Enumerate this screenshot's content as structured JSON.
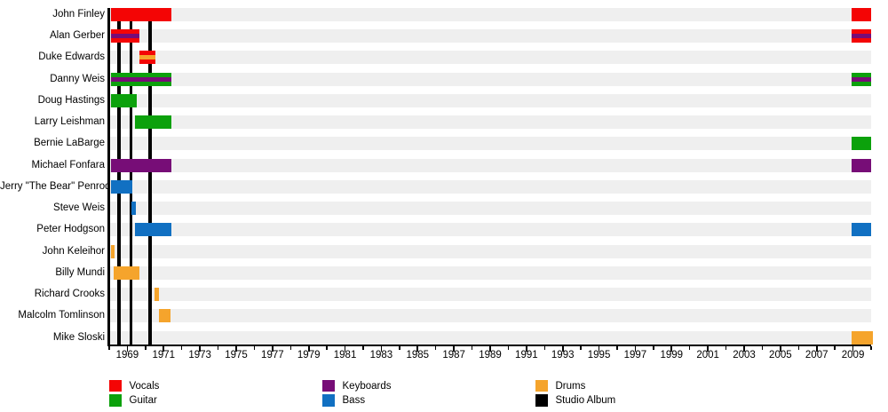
{
  "chart_data": {
    "type": "timeline",
    "description": "Band members timeline chart with studio album release markers",
    "colors": {
      "vocals": "#f40505",
      "guitar": "#0ca10c",
      "keyboards": "#770d77",
      "bass": "#1170c2",
      "drums": "#f5a42c",
      "album": "#000000",
      "row_bg": "#efefef"
    },
    "x_axis": {
      "start": 1968,
      "end": 2010,
      "tick_labels": [
        "1969",
        "1971",
        "1973",
        "1975",
        "1977",
        "1979",
        "1981",
        "1983",
        "1985",
        "1987",
        "1989",
        "1991",
        "1993",
        "1995",
        "1997",
        "1999",
        "2001",
        "2003",
        "2005",
        "2007",
        "2009"
      ]
    },
    "members": [
      {
        "name": "John Finley",
        "segments": [
          {
            "start": 1968.1,
            "end": 1971.45,
            "role": "vocals"
          },
          {
            "start": 2008.9,
            "end": 2010.0,
            "role": "vocals"
          }
        ]
      },
      {
        "name": "Alan Gerber",
        "segments": [
          {
            "start": 1968.1,
            "end": 1969.65,
            "role": "vocals",
            "stripe": "keyboards"
          },
          {
            "start": 2008.9,
            "end": 2010.0,
            "role": "vocals",
            "stripe": "keyboards"
          }
        ]
      },
      {
        "name": "Duke Edwards",
        "segments": [
          {
            "start": 1969.65,
            "end": 1970.55,
            "role": "vocals",
            "stripe": "drums"
          }
        ]
      },
      {
        "name": "Danny Weis",
        "segments": [
          {
            "start": 1968.1,
            "end": 1971.45,
            "role": "guitar",
            "stripe": "keyboards"
          },
          {
            "start": 2008.9,
            "end": 2010.0,
            "role": "guitar",
            "stripe": "keyboards"
          }
        ]
      },
      {
        "name": "Doug Hastings",
        "segments": [
          {
            "start": 1968.1,
            "end": 1969.5,
            "role": "guitar"
          }
        ]
      },
      {
        "name": "Larry Leishman",
        "segments": [
          {
            "start": 1969.4,
            "end": 1971.45,
            "role": "guitar"
          }
        ]
      },
      {
        "name": "Bernie LaBarge",
        "segments": [
          {
            "start": 2008.9,
            "end": 2010.0,
            "role": "guitar"
          }
        ]
      },
      {
        "name": "Michael Fonfara",
        "segments": [
          {
            "start": 1968.1,
            "end": 1971.45,
            "role": "keyboards"
          },
          {
            "start": 2008.9,
            "end": 2010.0,
            "role": "keyboards"
          }
        ]
      },
      {
        "name": "Jerry \"The Bear\" Penrod",
        "segments": [
          {
            "start": 1968.1,
            "end": 1969.25,
            "role": "bass"
          }
        ]
      },
      {
        "name": "Steve Weis",
        "segments": [
          {
            "start": 1969.2,
            "end": 1969.45,
            "role": "bass"
          }
        ]
      },
      {
        "name": "Peter Hodgson",
        "segments": [
          {
            "start": 1969.4,
            "end": 1971.45,
            "role": "bass"
          },
          {
            "start": 2008.9,
            "end": 2010.0,
            "role": "bass"
          }
        ]
      },
      {
        "name": "John Keleihor",
        "segments": [
          {
            "start": 1968.1,
            "end": 1968.3,
            "role": "drums"
          }
        ]
      },
      {
        "name": "Billy Mundi",
        "segments": [
          {
            "start": 1968.25,
            "end": 1969.65,
            "role": "drums"
          }
        ]
      },
      {
        "name": "Richard Crooks",
        "segments": [
          {
            "start": 1970.5,
            "end": 1970.75,
            "role": "drums"
          }
        ]
      },
      {
        "name": "Malcolm Tomlinson",
        "segments": [
          {
            "start": 1970.75,
            "end": 1971.4,
            "role": "drums"
          }
        ]
      },
      {
        "name": "Mike Sloski",
        "segments": [
          {
            "start": 2008.9,
            "end": 2010.1,
            "role": "drums"
          }
        ]
      }
    ],
    "albums": [
      1968.55,
      1969.2,
      1970.25
    ],
    "legend": [
      {
        "label": "Vocals",
        "color_key": "vocals"
      },
      {
        "label": "Guitar",
        "color_key": "guitar"
      },
      {
        "label": "Keyboards",
        "color_key": "keyboards"
      },
      {
        "label": "Bass",
        "color_key": "bass"
      },
      {
        "label": "Drums",
        "color_key": "drums"
      },
      {
        "label": "Studio Album",
        "color_key": "album"
      }
    ]
  }
}
